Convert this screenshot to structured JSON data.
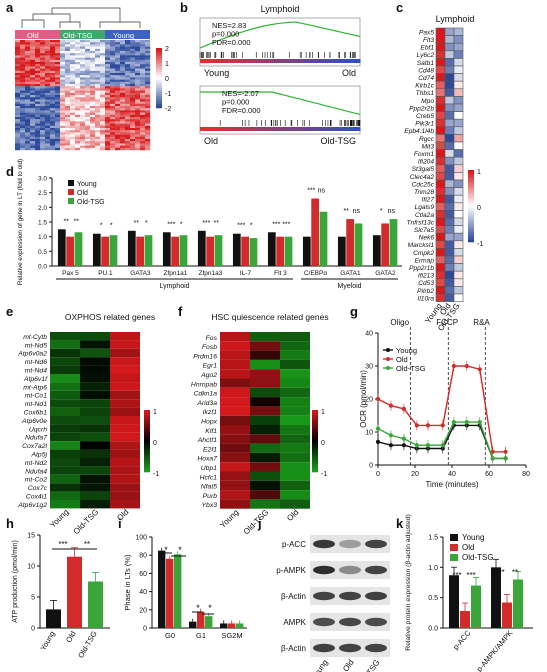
{
  "panel_letters": [
    "a",
    "b",
    "c",
    "d",
    "e",
    "f",
    "g",
    "h",
    "i",
    "j",
    "k"
  ],
  "colors": {
    "young": "#111111",
    "old": "#d22b2b",
    "old_tsg": "#3aa63a",
    "heat_red": "#d7191c",
    "heat_blue": "#2c4a9a",
    "heat_green": "#1a9e1a"
  },
  "panel_a": {
    "group_labels": [
      "Old",
      "Old-TSG",
      "Young"
    ],
    "colorbar_ticks": [
      "2",
      "1",
      "0",
      "-1",
      "-2"
    ]
  },
  "panel_b": {
    "title": "Lymphoid",
    "top": {
      "stats": [
        "NES=2.83",
        "p=0.000",
        "FDR=0.000"
      ],
      "left": "Young",
      "right": "Old"
    },
    "bottom": {
      "stats": [
        "NES=-2.07",
        "p=0.000",
        "FDR=0.000"
      ],
      "left": "Old",
      "right": "Old-TSG"
    }
  },
  "panel_c": {
    "title": "Lymphoid",
    "genes": [
      "Pax5",
      "Flt3",
      "Ebf1",
      "Ly6c2",
      "Satb1",
      "Cd48",
      "Cd74",
      "Klrb1c",
      "Thbs1",
      "Mpo",
      "Ppp2r2b",
      "Creb5",
      "Pik3r1",
      "Epb4.1l4b",
      "Rgcc",
      "Mit3",
      "Foxm1",
      "Ifi204",
      "St3gal5",
      "Clec4a2",
      "Cdc25c",
      "Trim28",
      "Ifi27",
      "Lgals9",
      "Ctla2a",
      "Tnfrsf13c",
      "Slc7a5",
      "Nek6",
      "Marcksl1",
      "Cmpk2",
      "Ermap",
      "Ppp2r1b",
      "Ifi213",
      "Cd53",
      "Pilrb2",
      "Il10ra"
    ],
    "columns": [
      "Young",
      "Old",
      "Old-TSG"
    ],
    "colorbar_ticks": [
      "1",
      "0",
      "-1"
    ]
  },
  "panel_d": {
    "ylabel": "Relative expression of gene in LT (fold to old)",
    "yticks": [
      "0.0",
      "0.5",
      "1.0",
      "1.5",
      "2.0",
      "2.5",
      "3.0"
    ],
    "legend": [
      "Young",
      "Old",
      "Old-TSG"
    ],
    "categories": [
      "Pax 5",
      "PU.1",
      "GATA3",
      "Zfpn1a1",
      "Zfpn1a3",
      "IL-7",
      "Flt 3",
      "C/EBPα",
      "GATA1",
      "GATA2"
    ],
    "groups": [
      "Lymphoid",
      "Myeloid"
    ],
    "sig": [
      [
        "**",
        "**"
      ],
      [
        "*",
        "*"
      ],
      [
        "**",
        "*"
      ],
      [
        "***",
        "*"
      ],
      [
        "***",
        "**"
      ],
      [
        "***",
        "*"
      ],
      [
        "***",
        "***"
      ],
      [
        "***",
        "ns"
      ],
      [
        "**",
        "ns"
      ],
      [
        "*",
        "ns"
      ]
    ]
  },
  "panel_e": {
    "title": "OXPHOS related genes",
    "genes": [
      "mt-Cytb",
      "mt-Nd5",
      "Atp6v0a2",
      "mt-Nd6",
      "mt-Nd4",
      "Atp6v1f",
      "mt-Atp6",
      "mt-Co1",
      "mt-Nd1",
      "Cox6b1",
      "Atp6v0e",
      "Uqcrh",
      "Ndufa7",
      "Cox7a2l",
      "Atp5j",
      "mt-Nd2",
      "Ndufa4",
      "mt-Co2",
      "Cox7c",
      "Cox4i1",
      "Atp6v1g2"
    ],
    "columns": [
      "Young",
      "Old-TSG",
      "Old"
    ],
    "colorbar_ticks": [
      "1",
      "0",
      "-1"
    ]
  },
  "panel_f": {
    "title": "HSC quiescence related genes",
    "genes": [
      "Fos",
      "Fosb",
      "Prdm16",
      "Egr1",
      "Ago2",
      "Hnrnpab",
      "Cdkn1a",
      "Arid3a",
      "Ikzf1",
      "Hopx",
      "Klf1",
      "Ahctf1",
      "E2f1",
      "Hoxa7",
      "Ubp1",
      "Hcfc1",
      "Nfat5",
      "Purb",
      "Ybx3"
    ],
    "columns": [
      "Young",
      "Old-TSG",
      "Old"
    ],
    "colorbar_ticks": [
      "1",
      "0",
      "-1"
    ]
  },
  "panel_g": {
    "ylabel": "OCR (pmol/min)",
    "xlabel": "Time (minutes)",
    "yticks": [
      "0",
      "10",
      "20",
      "30",
      "40"
    ],
    "xticks": [
      "0",
      "20",
      "40",
      "60",
      "80"
    ],
    "annotations": [
      "Oligo",
      "FCCP",
      "R&A"
    ],
    "legend": [
      "Young",
      "Old",
      "Old-TSG"
    ]
  },
  "panel_h": {
    "ylabel": "ATP production (pmol/min)",
    "yticks": [
      "0",
      "5",
      "10",
      "15"
    ],
    "categories": [
      "Young",
      "Old",
      "Old-TSG"
    ],
    "sig": [
      "***",
      "**"
    ]
  },
  "panel_i": {
    "ylabel": "Phase in LTs (%)",
    "yticks": [
      "0",
      "20",
      "40",
      "60",
      "80",
      "100"
    ],
    "categories": [
      "G0",
      "G1",
      "SG2M"
    ],
    "sig_g0": [
      "*",
      "*"
    ],
    "sig_g1": [
      "*",
      "*"
    ]
  },
  "panel_j": {
    "rows": [
      "p-ACC",
      "p-AMPK",
      "β-Actin",
      "AMPK",
      "β-Actin"
    ],
    "lanes": [
      "Young",
      "Old",
      "Old-TSG"
    ]
  },
  "panel_k": {
    "ylabel": "Relative protein expression (β-actin adjusted)",
    "yticks": [
      "0.0",
      "0.5",
      "1.0",
      "1.5"
    ],
    "categories": [
      "p-ACC",
      "p-AMPK/AMPK"
    ],
    "legend": [
      "Young",
      "Old",
      "Old-TSG"
    ],
    "sig_1": [
      "***",
      "***"
    ],
    "sig_2": [
      "***",
      "**"
    ]
  },
  "chart_data": [
    {
      "type": "bar",
      "id": "d",
      "categories": [
        "Pax 5",
        "PU.1",
        "GATA3",
        "Zfpn1a1",
        "Zfpn1a3",
        "IL-7",
        "Flt 3",
        "C/EBPα",
        "GATA1",
        "GATA2"
      ],
      "series": [
        {
          "name": "Young",
          "values": [
            1.25,
            1.1,
            1.2,
            1.15,
            1.2,
            1.1,
            1.15,
            1.0,
            1.0,
            1.05
          ]
        },
        {
          "name": "Old",
          "values": [
            1.0,
            1.0,
            1.0,
            1.0,
            1.0,
            1.0,
            1.0,
            2.3,
            1.6,
            1.45
          ]
        },
        {
          "name": "Old-TSG",
          "values": [
            1.15,
            1.05,
            1.05,
            1.05,
            1.05,
            0.95,
            1.0,
            1.85,
            1.45,
            1.6
          ]
        }
      ],
      "ylabel": "Relative expression of gene in LT (fold to old)",
      "ylim": [
        0,
        3
      ]
    },
    {
      "type": "line",
      "id": "g",
      "x": [
        0,
        7,
        14,
        21,
        27,
        35,
        41,
        48,
        55,
        62,
        69
      ],
      "series": [
        {
          "name": "Young",
          "values": [
            7,
            6,
            6,
            5,
            5,
            5,
            12,
            12,
            12,
            2,
            2
          ]
        },
        {
          "name": "Old",
          "values": [
            20,
            18,
            17,
            12,
            12,
            12,
            30,
            30,
            29,
            4,
            4
          ]
        },
        {
          "name": "Old-TSG",
          "values": [
            11,
            9,
            8,
            6,
            6,
            6,
            13,
            13,
            13,
            2,
            2
          ]
        }
      ],
      "xlabel": "Time (minutes)",
      "ylabel": "OCR (pmol/min)",
      "xlim": [
        0,
        80
      ],
      "ylim": [
        0,
        40
      ]
    },
    {
      "type": "bar",
      "id": "h",
      "categories": [
        "Young",
        "Old",
        "Old-TSG"
      ],
      "values": [
        3,
        11.5,
        7.5
      ],
      "ylabel": "ATP production (pmol/min)",
      "ylim": [
        0,
        15
      ]
    },
    {
      "type": "bar",
      "id": "i",
      "categories": [
        "G0",
        "G1",
        "SG2M"
      ],
      "series": [
        {
          "name": "Young",
          "values": [
            85,
            7,
            5
          ]
        },
        {
          "name": "Old",
          "values": [
            76,
            18,
            5
          ]
        },
        {
          "name": "Old-TSG",
          "values": [
            81,
            13,
            5
          ]
        }
      ],
      "ylabel": "Phase in LTs (%)",
      "ylim": [
        0,
        100
      ]
    },
    {
      "type": "bar",
      "id": "k",
      "categories": [
        "p-ACC",
        "p-AMPK/AMPK"
      ],
      "series": [
        {
          "name": "Young",
          "values": [
            0.87,
            1.0
          ]
        },
        {
          "name": "Old",
          "values": [
            0.28,
            0.42
          ]
        },
        {
          "name": "Old-TSG",
          "values": [
            0.7,
            0.8
          ]
        }
      ],
      "ylabel": "Relative protein expression (β-actin adjusted)",
      "ylim": [
        0,
        1.5
      ]
    }
  ]
}
